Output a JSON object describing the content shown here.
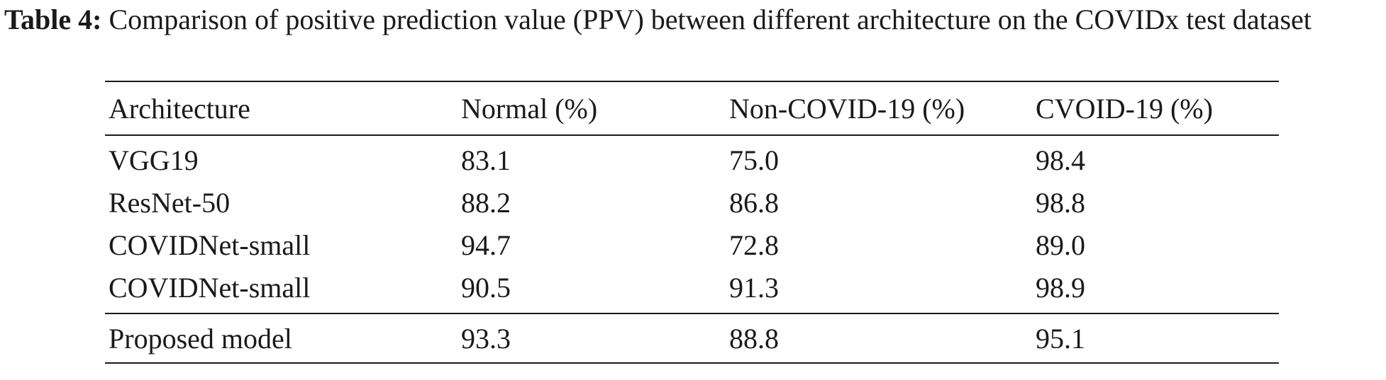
{
  "caption": {
    "label": "Table 4:",
    "text": " Comparison of positive prediction value (PPV) between different architecture on the COVIDx test dataset"
  },
  "table": {
    "headers": [
      "Architecture",
      "Normal (%)",
      "Non-COVID-19 (%)",
      "CVOID-19 (%)"
    ],
    "rows": [
      [
        "VGG19",
        "83.1",
        "75.0",
        "98.4"
      ],
      [
        "ResNet-50",
        "88.2",
        "86.8",
        "98.8"
      ],
      [
        "COVIDNet-small",
        "94.7",
        "72.8",
        "89.0"
      ],
      [
        "COVIDNet-small",
        "90.5",
        "91.3",
        "98.9"
      ],
      [
        "Proposed model",
        "93.3",
        "88.8",
        "95.1"
      ]
    ]
  }
}
